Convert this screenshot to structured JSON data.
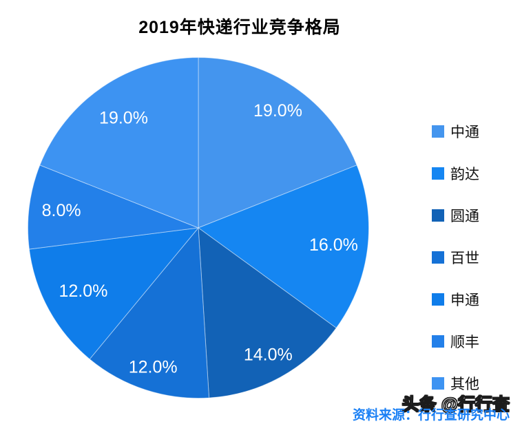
{
  "title": "2019年快递行业竞争格局",
  "footer": {
    "source_text": "资料来源：行行查研究中心",
    "watermark": "头条 @行行查"
  },
  "chart_data": {
    "type": "pie",
    "title": "2019年快递行业竞争格局",
    "unit": "percent",
    "direction": "clockwise",
    "start_angle_deg": 0,
    "legend_position": "right",
    "label_position": "inside",
    "series": [
      {
        "id": "zhongtong",
        "name": "中通",
        "value": 19.0,
        "label": "19.0%",
        "color": "#4495ee"
      },
      {
        "id": "yunda",
        "name": "韵达",
        "value": 16.0,
        "label": "16.0%",
        "color": "#1586f2"
      },
      {
        "id": "yuantong",
        "name": "圆通",
        "value": 14.0,
        "label": "14.0%",
        "color": "#1262b6"
      },
      {
        "id": "baishi",
        "name": "百世",
        "value": 12.0,
        "label": "12.0%",
        "color": "#1571d6"
      },
      {
        "id": "shentong",
        "name": "申通",
        "value": 12.0,
        "label": "12.0%",
        "color": "#0f7dea"
      },
      {
        "id": "shunfeng",
        "name": "顺丰",
        "value": 8.0,
        "label": "8.0%",
        "color": "#2380e9"
      },
      {
        "id": "qita",
        "name": "其他",
        "value": 19.0,
        "label": "19.0%",
        "color": "#3d93f2"
      }
    ],
    "colors": {
      "label_text": "#ffffff",
      "title_text": "#000000",
      "legend_text": "#111111",
      "source_text": "#1a80f5",
      "background": "#ffffff"
    }
  }
}
